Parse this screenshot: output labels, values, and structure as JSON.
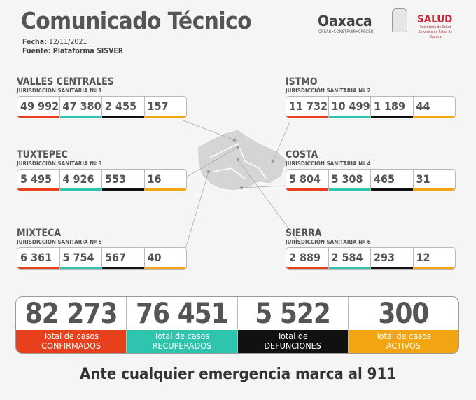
{
  "header": {
    "title": "Comunicado Técnico",
    "fecha_label": "Fecha:",
    "fecha": "12/11/2021",
    "fuente_label": "Fuente:",
    "fuente": "Plataforma SISVER"
  },
  "logos": {
    "oaxaca": "Oaxaca",
    "oaxaca_tagline": "CREAR•CONSTRUIR•CRECER",
    "salud": "SALUD",
    "salud_sub": "Secretaría de Salud Servicios de Salud de Oaxaca"
  },
  "colors": {
    "confirmados": "#e8401c",
    "recuperados": "#2ec4ae",
    "defunciones": "#111111",
    "activos": "#f2a413"
  },
  "regions": [
    {
      "name": "VALLES CENTRALES",
      "sub": "JURISDICCIÓN SANITARIA Nº 1",
      "values": [
        "49 992",
        "47 380",
        "2 455",
        "157"
      ]
    },
    {
      "name": "ISTMO",
      "sub": "JURISDICCIÓN SANITARIA Nº 2",
      "values": [
        "11 732",
        "10 499",
        "1 189",
        "44"
      ]
    },
    {
      "name": "TUXTEPEC",
      "sub": "JURISDICCIÓN SANITARIA Nº 3",
      "values": [
        "5 495",
        "4 926",
        "553",
        "16"
      ]
    },
    {
      "name": "COSTA",
      "sub": "JURISDICCIÓN SANITARIA Nº 4",
      "values": [
        "5 804",
        "5 308",
        "465",
        "31"
      ]
    },
    {
      "name": "MIXTECA",
      "sub": "JURISDICCIÓN SANITARIA Nº 5",
      "values": [
        "6 361",
        "5 754",
        "567",
        "40"
      ]
    },
    {
      "name": "SIERRA",
      "sub": "JURISDICCIÓN SANITARIA Nº 6",
      "values": [
        "2 889",
        "2 584",
        "293",
        "12"
      ]
    }
  ],
  "totals": [
    {
      "value": "82 273",
      "l1": "Total de casos",
      "l2": "CONFIRMADOS"
    },
    {
      "value": "76 451",
      "l1": "Total de casos",
      "l2": "RECUPERADOS"
    },
    {
      "value": "5 522",
      "l1": "Total de",
      "l2": "DEFUNCIONES"
    },
    {
      "value": "300",
      "l1": "Total de casos",
      "l2": "ACTIVOS"
    }
  ],
  "footer": "Ante cualquier emergencia marca al 911"
}
